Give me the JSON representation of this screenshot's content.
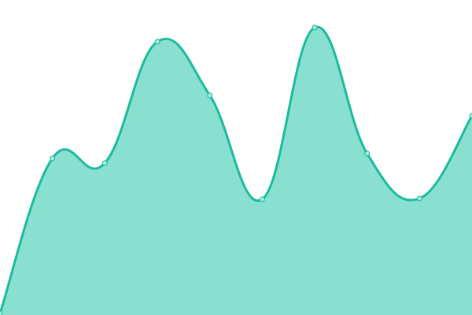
{
  "chart_data": {
    "type": "area",
    "x": [
      0,
      1,
      2,
      3,
      4,
      5,
      6,
      7,
      8,
      9
    ],
    "values": [
      2,
      199,
      193,
      347,
      279,
      147,
      365,
      205,
      148,
      253
    ],
    "ylim": [
      0,
      400
    ],
    "grid": false,
    "legend": "none",
    "title": "",
    "xlabel": "",
    "ylabel": "",
    "colors": {
      "line": "#1abc9c",
      "fill": "#8ae0d0",
      "point_fill": "#a8ebdc"
    }
  }
}
